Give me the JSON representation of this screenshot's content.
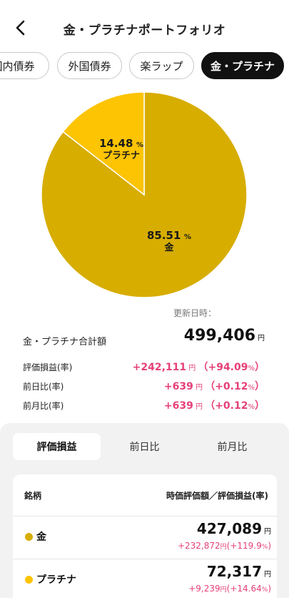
{
  "header": {
    "title": "金・プラチナポートフォリオ",
    "back_icon": "chevron-left-icon"
  },
  "tabs": [
    {
      "label": "国内債券",
      "active": false
    },
    {
      "label": "外国債券",
      "active": false
    },
    {
      "label": "楽ラップ",
      "active": false
    },
    {
      "label": "金・プラチナ",
      "active": true
    }
  ],
  "chart_data": {
    "type": "pie",
    "categories": [
      "金",
      "プラチナ"
    ],
    "values": [
      85.51,
      14.48
    ],
    "labels": [
      {
        "value": "85.51",
        "unit": "%",
        "name": "金"
      },
      {
        "value": "14.48",
        "unit": "%",
        "name": "プラチナ"
      }
    ],
    "colors": [
      "#d7ad00",
      "#fdc403"
    ]
  },
  "updated_label": "更新日時：",
  "summary": {
    "total_label": "金・プラチナ合計額",
    "total_value": "499,406",
    "unit": "円",
    "rows": [
      {
        "label": "評価損益(率)",
        "value": "+242,111",
        "pct": "+94.09"
      },
      {
        "label": "前日比(率)",
        "value": "+639",
        "pct": "+0.12"
      },
      {
        "label": "前月比(率)",
        "value": "+639",
        "pct": "+0.12"
      }
    ]
  },
  "segments": [
    {
      "label": "評価損益",
      "active": true
    },
    {
      "label": "前日比",
      "active": false
    },
    {
      "label": "前月比",
      "active": false
    }
  ],
  "table": {
    "col_left": "銘柄",
    "col_right": "時価評価額／評価損益(率)",
    "rows": [
      {
        "name": "金",
        "color": "#d7ad00",
        "amount": "427,089",
        "pl": "+232,872",
        "pl_pct": "+119.9"
      },
      {
        "name": "プラチナ",
        "color": "#fdc403",
        "amount": "72,317",
        "pl": "+9,239",
        "pl_pct": "+14.64"
      }
    ]
  },
  "colors": {
    "accent_pink": "#e5407a",
    "gold": "#d7ad00",
    "platinum": "#fdc403"
  }
}
